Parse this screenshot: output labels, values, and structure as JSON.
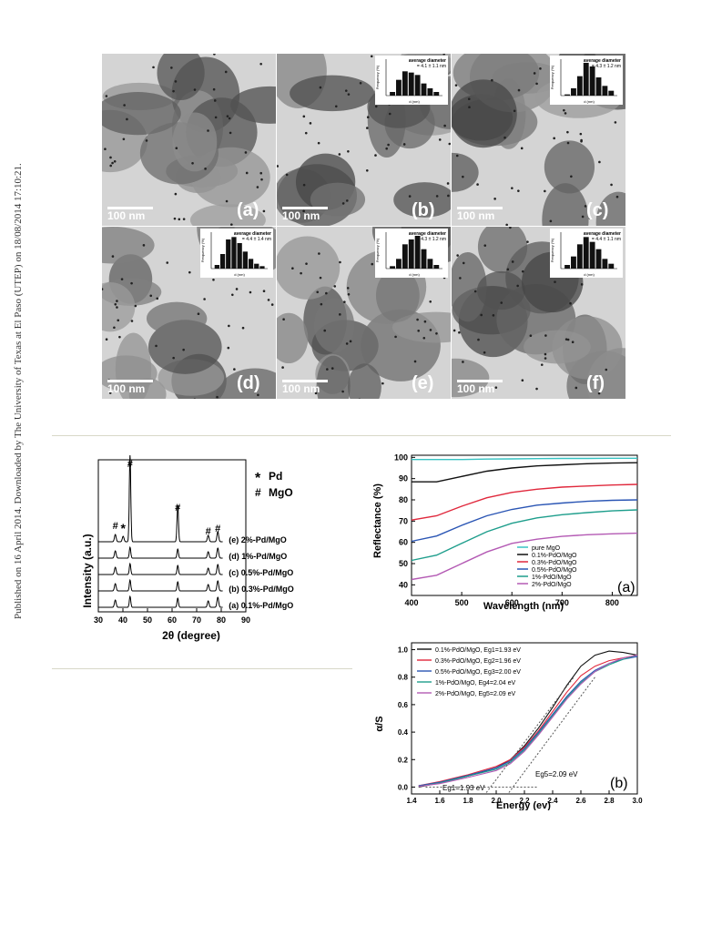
{
  "sidebar_text": "Published on 16 April 2014. Downloaded by The University of Texas at El Paso (UTEP) on 18/08/2014 17:10:21.",
  "tem": {
    "panels": [
      {
        "id": "a",
        "label": "(a)",
        "scale": "100 nm",
        "has_hist": false
      },
      {
        "id": "b",
        "label": "(b)",
        "scale": "100 nm",
        "has_hist": true,
        "avg_title": "average diameter",
        "avg_value": "= 4.1 ± 1.1 nm",
        "hist": [
          3,
          13,
          20,
          19,
          17,
          10,
          6,
          3
        ]
      },
      {
        "id": "c",
        "label": "(c)",
        "scale": "100 nm",
        "has_hist": true,
        "avg_title": "average diameter",
        "avg_value": "= 4.3 ± 1.2 nm",
        "hist": [
          1,
          6,
          16,
          27,
          24,
          15,
          8,
          4
        ]
      },
      {
        "id": "d",
        "label": "(d)",
        "scale": "100 nm",
        "has_hist": true,
        "avg_title": "average diameter",
        "avg_value": "= 4.4 ± 1.4 nm",
        "hist": [
          3,
          12,
          24,
          26,
          21,
          14,
          8,
          4,
          2
        ]
      },
      {
        "id": "e",
        "label": "(e)",
        "scale": "100 nm",
        "has_hist": true,
        "avg_title": "average diameter",
        "avg_value": "= 4.3 ± 1.2 nm",
        "hist": [
          2,
          8,
          20,
          24,
          27,
          16,
          8,
          3
        ]
      },
      {
        "id": "f",
        "label": "(f)",
        "scale": "100 nm",
        "has_hist": true,
        "avg_title": "average diameter",
        "avg_value": "= 4.4 ± 1.1 nm",
        "hist": [
          3,
          10,
          20,
          26,
          22,
          16,
          8,
          4
        ]
      }
    ],
    "hist_ylabel": "Frequency (%)",
    "hist_xlabel": "d (nm)"
  },
  "xrd": {
    "ylabel": "Intensity (a.u.)",
    "xlabel": "2θ (degree)",
    "legend_pd": "Pd",
    "legend_mgo": "MgO",
    "star": "*",
    "hash": "#",
    "curve_labels": [
      "(e) 2%-Pd/MgO",
      "(d) 1%-Pd/MgO",
      "(c) 0.5%-Pd/MgO",
      "(b) 0.3%-Pd/MgO",
      "(a) 0.1%-Pd/MgO"
    ],
    "xticks": [
      "30",
      "40",
      "50",
      "60",
      "70",
      "80",
      "90"
    ]
  },
  "reflectance": {
    "ylabel": "Reflectance (%)",
    "xlabel": "Wavelength (nm)",
    "panel": "(a)",
    "xticks": [
      "400",
      "500",
      "600",
      "700",
      "800"
    ],
    "yticks": [
      "100",
      "90",
      "80",
      "70",
      "60",
      "50",
      "40"
    ],
    "legend": [
      "pure MgO",
      "0.1%-PdO/MgO",
      "0.3%-PdO/MgO",
      "0.5%-PdO/MgO",
      "1%-PdO/MgO",
      "2%-PdO/MgO"
    ]
  },
  "kubelka": {
    "ylabel": "α/S",
    "xlabel": "Energy (ev)",
    "panel": "(b)",
    "xticks": [
      "1.4",
      "1.6",
      "1.8",
      "2.0",
      "2.2",
      "2.4",
      "2.6",
      "2.8",
      "3.0"
    ],
    "yticks": [
      "1.0",
      "0.8",
      "0.6",
      "0.4",
      "0.2",
      "0.0"
    ],
    "legend": [
      "0.1%-PdO/MgO, Eg1=1.93 eV",
      "0.3%-PdO/MgO, Eg2=1.96 eV",
      "0.5%-PdO/MgO, Eg3=2.00 eV",
      "1%-PdO/MgO,   Eg4=2.04 eV",
      "2%-PdO/MgO,   Eg5=2.09 eV"
    ],
    "ann_eg5": "Eg5=2.09 eV",
    "ann_eg1": "Eg1=1.93 eV"
  },
  "colors": {
    "pure": "#37c2c2",
    "c01": "#111111",
    "c03": "#e0283c",
    "c05": "#2a55b4",
    "c1": "#1e9e8c",
    "c2": "#b45ab4"
  },
  "chart_data": [
    {
      "type": "line",
      "xlabel": "2θ (degree)",
      "ylabel": "Intensity (a.u.)",
      "xlim": [
        30,
        90
      ],
      "series": [
        {
          "name": "(e) 2%-Pd/MgO",
          "peaks": [
            36.9,
            40.1,
            42.9,
            62.3,
            74.7,
            78.6
          ]
        },
        {
          "name": "(d) 1%-Pd/MgO",
          "peaks": [
            36.9,
            42.9,
            62.3,
            74.7,
            78.6
          ]
        },
        {
          "name": "(c) 0.5%-Pd/MgO",
          "peaks": [
            36.9,
            42.9,
            62.3,
            74.7,
            78.6
          ]
        },
        {
          "name": "(b) 0.3%-Pd/MgO",
          "peaks": [
            36.9,
            42.9,
            62.3,
            74.7,
            78.6
          ]
        },
        {
          "name": "(a) 0.1%-Pd/MgO",
          "peaks": [
            36.9,
            42.9,
            62.3,
            74.7,
            78.6
          ]
        }
      ]
    },
    {
      "type": "line",
      "xlabel": "Wavelength (nm)",
      "ylabel": "Reflectance (%)",
      "xlim": [
        400,
        850
      ],
      "ylim": [
        35,
        101
      ],
      "x": [
        400,
        450,
        500,
        550,
        600,
        650,
        700,
        750,
        800,
        850
      ],
      "series": [
        {
          "name": "pure MgO",
          "values": [
            99,
            99,
            99,
            99.2,
            99.3,
            99.4,
            99.5,
            99.5,
            99.6,
            99.6
          ]
        },
        {
          "name": "0.1%-PdO/MgO",
          "values": [
            88.5,
            88.5,
            91,
            93.5,
            95,
            96,
            96.5,
            97,
            97.3,
            97.5
          ]
        },
        {
          "name": "0.3%-PdO/MgO",
          "values": [
            70.5,
            72.5,
            77,
            81,
            83.5,
            85,
            86,
            86.5,
            87,
            87.3
          ]
        },
        {
          "name": "0.5%-PdO/MgO",
          "values": [
            60.5,
            63,
            68,
            72.5,
            75.5,
            77.5,
            78.5,
            79.3,
            79.8,
            80
          ]
        },
        {
          "name": "1%-PdO/MgO",
          "values": [
            51.5,
            54,
            59.5,
            65,
            69,
            71.5,
            73,
            74,
            74.8,
            75.3
          ]
        },
        {
          "name": "2%-PdO/MgO",
          "values": [
            42.5,
            44.5,
            50,
            55.5,
            59.5,
            61.5,
            62.8,
            63.6,
            64,
            64.3
          ]
        }
      ]
    },
    {
      "type": "line",
      "xlabel": "Energy (ev)",
      "ylabel": "α/S",
      "xlim": [
        1.4,
        3.0
      ],
      "ylim": [
        -0.05,
        1.05
      ],
      "x": [
        1.45,
        1.6,
        1.8,
        2.0,
        2.1,
        2.2,
        2.3,
        2.4,
        2.5,
        2.6,
        2.7,
        2.8,
        2.9,
        3.0
      ],
      "series": [
        {
          "name": "0.1%-PdO/MgO, Eg1=1.93 eV",
          "values": [
            0.0,
            0.03,
            0.08,
            0.14,
            0.2,
            0.3,
            0.43,
            0.58,
            0.74,
            0.88,
            0.96,
            0.99,
            0.98,
            0.96
          ]
        },
        {
          "name": "0.3%-PdO/MgO, Eg2=1.96 eV",
          "values": [
            0.01,
            0.04,
            0.09,
            0.15,
            0.2,
            0.29,
            0.41,
            0.55,
            0.69,
            0.81,
            0.88,
            0.92,
            0.94,
            0.96
          ]
        },
        {
          "name": "0.5%-PdO/MgO, Eg3=2.00 eV",
          "values": [
            0.01,
            0.035,
            0.085,
            0.14,
            0.19,
            0.28,
            0.4,
            0.53,
            0.66,
            0.77,
            0.85,
            0.9,
            0.93,
            0.95
          ]
        },
        {
          "name": "1%-PdO/MgO,   Eg4=2.04 eV",
          "values": [
            0.005,
            0.03,
            0.08,
            0.13,
            0.18,
            0.27,
            0.39,
            0.52,
            0.65,
            0.76,
            0.84,
            0.89,
            0.93,
            0.96
          ]
        },
        {
          "name": "2%-PdO/MgO,   Eg5=2.09 eV",
          "values": [
            0.005,
            0.025,
            0.07,
            0.12,
            0.17,
            0.26,
            0.38,
            0.51,
            0.64,
            0.75,
            0.84,
            0.9,
            0.94,
            0.96
          ]
        }
      ]
    }
  ]
}
